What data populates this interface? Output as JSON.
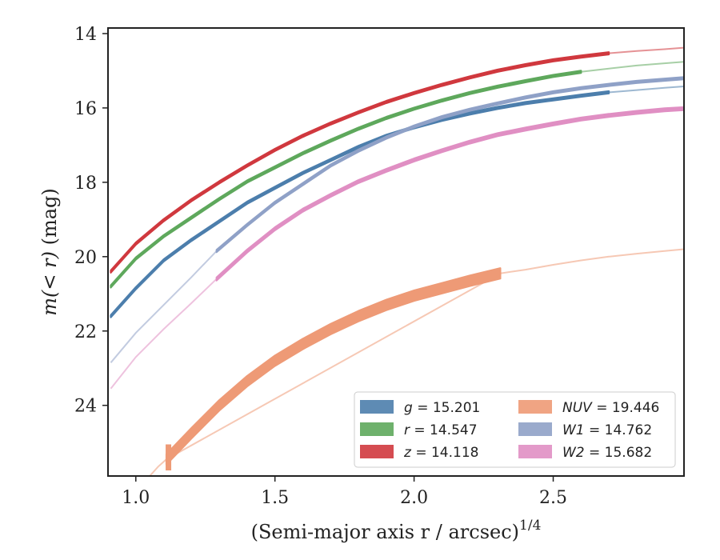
{
  "chart_data": {
    "type": "line",
    "title": "",
    "xlabel": "(Semi-major axis r / arcsec)",
    "xlabel_superscript": "1/4",
    "ylabel_prefix": "m(< r)",
    "ylabel_suffix": " (mag)",
    "xlim": [
      0.9,
      2.97
    ],
    "ylim": [
      25.9,
      13.85
    ],
    "y_inverted": true,
    "x_ticks": [
      1.0,
      1.5,
      2.0,
      2.5
    ],
    "x_tick_labels": [
      "1.0",
      "1.5",
      "2.0",
      "2.5"
    ],
    "y_ticks": [
      14,
      16,
      18,
      20,
      22,
      24
    ],
    "y_tick_labels": [
      "14",
      "16",
      "18",
      "20",
      "22",
      "24"
    ],
    "grid": false,
    "legend_position": "lower-right",
    "legend_columns": 2,
    "series": [
      {
        "name": "g = 15.201",
        "legend_symbol": "g",
        "legend_value": "15.201",
        "italic_symbol": true,
        "color": "#4c7eac",
        "band_width_mag": 0.06,
        "measured": [
          [
            0.91,
            21.6
          ],
          [
            1.0,
            20.85
          ],
          [
            1.1,
            20.1
          ],
          [
            1.2,
            19.55
          ],
          [
            1.3,
            19.05
          ],
          [
            1.4,
            18.55
          ],
          [
            1.5,
            18.15
          ],
          [
            1.6,
            17.75
          ],
          [
            1.7,
            17.4
          ],
          [
            1.8,
            17.05
          ],
          [
            1.9,
            16.75
          ],
          [
            2.0,
            16.52
          ],
          [
            2.1,
            16.32
          ],
          [
            2.2,
            16.15
          ],
          [
            2.3,
            16.0
          ],
          [
            2.4,
            15.87
          ],
          [
            2.5,
            15.77
          ],
          [
            2.6,
            15.67
          ],
          [
            2.7,
            15.58
          ]
        ],
        "model": [
          [
            2.7,
            15.58
          ],
          [
            2.8,
            15.52
          ],
          [
            2.9,
            15.46
          ],
          [
            2.97,
            15.42
          ]
        ]
      },
      {
        "name": "r = 14.547",
        "legend_symbol": "r",
        "legend_value": "14.547",
        "italic_symbol": true,
        "color": "#5ea85c",
        "band_width_mag": 0.06,
        "measured": [
          [
            0.91,
            20.8
          ],
          [
            1.0,
            20.05
          ],
          [
            1.1,
            19.45
          ],
          [
            1.2,
            18.95
          ],
          [
            1.3,
            18.45
          ],
          [
            1.4,
            17.98
          ],
          [
            1.5,
            17.6
          ],
          [
            1.6,
            17.22
          ],
          [
            1.7,
            16.88
          ],
          [
            1.8,
            16.56
          ],
          [
            1.9,
            16.27
          ],
          [
            2.0,
            16.02
          ],
          [
            2.1,
            15.8
          ],
          [
            2.2,
            15.6
          ],
          [
            2.3,
            15.43
          ],
          [
            2.4,
            15.28
          ],
          [
            2.5,
            15.14
          ],
          [
            2.6,
            15.03
          ]
        ],
        "model": [
          [
            2.6,
            15.03
          ],
          [
            2.7,
            14.94
          ],
          [
            2.8,
            14.86
          ],
          [
            2.9,
            14.8
          ],
          [
            2.97,
            14.76
          ]
        ]
      },
      {
        "name": "z = 14.118",
        "legend_symbol": "z",
        "legend_value": "14.118",
        "italic_symbol": true,
        "color": "#d0383e",
        "band_width_mag": 0.06,
        "measured": [
          [
            0.91,
            20.4
          ],
          [
            1.0,
            19.65
          ],
          [
            1.1,
            19.02
          ],
          [
            1.2,
            18.48
          ],
          [
            1.3,
            18.0
          ],
          [
            1.4,
            17.55
          ],
          [
            1.5,
            17.13
          ],
          [
            1.6,
            16.75
          ],
          [
            1.7,
            16.42
          ],
          [
            1.8,
            16.12
          ],
          [
            1.9,
            15.84
          ],
          [
            2.0,
            15.6
          ],
          [
            2.1,
            15.38
          ],
          [
            2.2,
            15.18
          ],
          [
            2.3,
            15.0
          ],
          [
            2.4,
            14.85
          ],
          [
            2.5,
            14.72
          ],
          [
            2.6,
            14.62
          ],
          [
            2.7,
            14.53
          ]
        ],
        "model": [
          [
            2.7,
            14.53
          ],
          [
            2.8,
            14.47
          ],
          [
            2.9,
            14.42
          ],
          [
            2.97,
            14.38
          ]
        ]
      },
      {
        "name": "NUV = 19.446",
        "legend_symbol": "NUV",
        "legend_value": "19.446",
        "italic_symbol": true,
        "color": "#ee9a76",
        "band_width_mag": 0.28,
        "measured": [
          [
            1.11,
            25.45
          ],
          [
            1.2,
            24.75
          ],
          [
            1.3,
            24.0
          ],
          [
            1.4,
            23.35
          ],
          [
            1.5,
            22.8
          ],
          [
            1.6,
            22.35
          ],
          [
            1.7,
            21.95
          ],
          [
            1.8,
            21.6
          ],
          [
            1.9,
            21.3
          ],
          [
            2.0,
            21.05
          ],
          [
            2.1,
            20.85
          ],
          [
            2.2,
            20.65
          ],
          [
            2.31,
            20.45
          ]
        ],
        "model": [
          [
            1.05,
            25.9
          ],
          [
            1.08,
            25.65
          ],
          [
            1.11,
            25.45
          ],
          [
            2.31,
            20.45
          ],
          [
            2.4,
            20.35
          ],
          [
            2.5,
            20.22
          ],
          [
            2.6,
            20.1
          ],
          [
            2.7,
            20.0
          ],
          [
            2.8,
            19.92
          ],
          [
            2.9,
            19.85
          ],
          [
            2.97,
            19.8
          ]
        ]
      },
      {
        "name": "W1 = 14.762",
        "legend_symbol": "W1",
        "legend_value": "14.762",
        "italic_symbol": true,
        "color": "#8fa1c7",
        "band_width_mag": 0.06,
        "measured": [
          [
            1.29,
            19.85
          ],
          [
            1.4,
            19.15
          ],
          [
            1.5,
            18.55
          ],
          [
            1.6,
            18.05
          ],
          [
            1.7,
            17.55
          ],
          [
            1.8,
            17.15
          ],
          [
            1.9,
            16.8
          ],
          [
            2.0,
            16.5
          ],
          [
            2.1,
            16.25
          ],
          [
            2.2,
            16.05
          ],
          [
            2.3,
            15.88
          ],
          [
            2.4,
            15.72
          ],
          [
            2.5,
            15.58
          ],
          [
            2.6,
            15.47
          ],
          [
            2.7,
            15.38
          ],
          [
            2.8,
            15.3
          ],
          [
            2.9,
            15.24
          ],
          [
            2.97,
            15.2
          ]
        ],
        "model": [
          [
            0.91,
            22.85
          ],
          [
            1.0,
            22.05
          ],
          [
            1.1,
            21.3
          ],
          [
            1.2,
            20.55
          ],
          [
            1.29,
            19.85
          ]
        ]
      },
      {
        "name": "W2 = 15.682",
        "legend_symbol": "W2",
        "legend_value": "15.682",
        "italic_symbol": true,
        "color": "#e08fc3",
        "band_width_mag": 0.08,
        "measured": [
          [
            1.29,
            20.6
          ],
          [
            1.4,
            19.85
          ],
          [
            1.5,
            19.25
          ],
          [
            1.6,
            18.75
          ],
          [
            1.7,
            18.35
          ],
          [
            1.8,
            17.98
          ],
          [
            1.9,
            17.68
          ],
          [
            2.0,
            17.4
          ],
          [
            2.1,
            17.15
          ],
          [
            2.2,
            16.92
          ],
          [
            2.3,
            16.72
          ],
          [
            2.4,
            16.57
          ],
          [
            2.5,
            16.43
          ],
          [
            2.6,
            16.3
          ],
          [
            2.7,
            16.2
          ],
          [
            2.8,
            16.12
          ],
          [
            2.9,
            16.05
          ],
          [
            2.97,
            16.02
          ]
        ],
        "model": [
          [
            0.91,
            23.55
          ],
          [
            1.0,
            22.7
          ],
          [
            1.1,
            21.95
          ],
          [
            1.2,
            21.25
          ],
          [
            1.29,
            20.6
          ]
        ]
      }
    ]
  }
}
